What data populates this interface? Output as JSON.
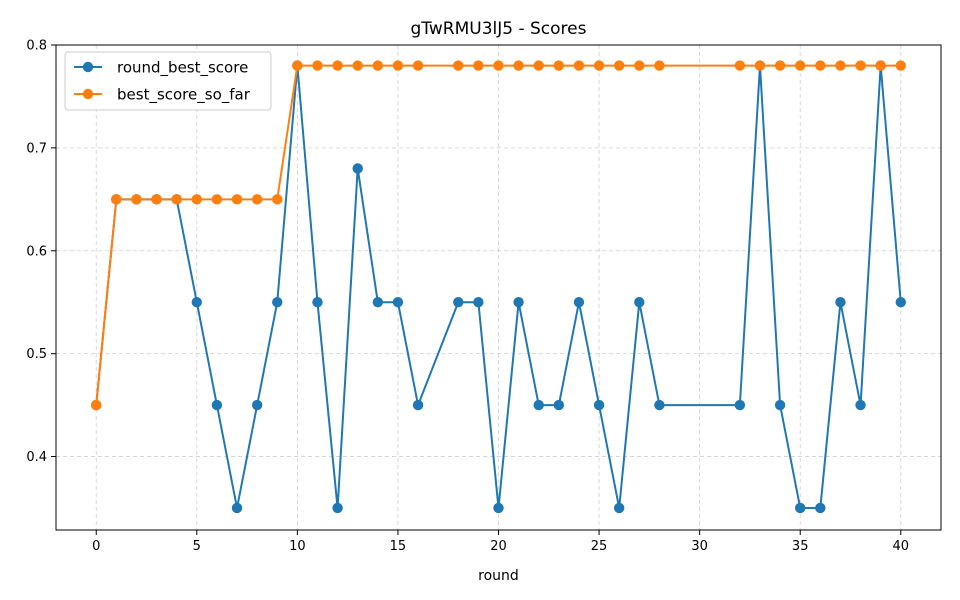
{
  "chart_data": {
    "type": "line",
    "title": "gTwRMU3lJ5 - Scores",
    "xlabel": "round",
    "ylabel": "",
    "xlim": [
      -2,
      42
    ],
    "ylim": [
      0.3286,
      0.8
    ],
    "xticks": [
      0,
      5,
      10,
      15,
      20,
      25,
      30,
      35,
      40
    ],
    "yticks": [
      0.4,
      0.5,
      0.6,
      0.7,
      0.8
    ],
    "xtick_labels": [
      "0",
      "5",
      "10",
      "15",
      "20",
      "25",
      "30",
      "35",
      "40"
    ],
    "ytick_labels": [
      "0.4",
      "0.5",
      "0.6",
      "0.7",
      "0.8"
    ],
    "grid": true,
    "legend_position": "top-left",
    "series": [
      {
        "name": "round_best_score",
        "color": "#1f77b4",
        "x": [
          0,
          1,
          2,
          3,
          4,
          5,
          6,
          7,
          8,
          9,
          10,
          11,
          12,
          13,
          14,
          15,
          16,
          18,
          19,
          20,
          21,
          22,
          23,
          24,
          25,
          26,
          27,
          28,
          32,
          33,
          34,
          35,
          36,
          37,
          38,
          39,
          40
        ],
        "y": [
          0.45,
          0.65,
          0.65,
          0.65,
          0.65,
          0.55,
          0.45,
          0.35,
          0.45,
          0.55,
          0.78,
          0.55,
          0.35,
          0.68,
          0.55,
          0.55,
          0.45,
          0.55,
          0.55,
          0.35,
          0.55,
          0.45,
          0.45,
          0.55,
          0.45,
          0.35,
          0.55,
          0.45,
          0.45,
          0.78,
          0.45,
          0.35,
          0.35,
          0.55,
          0.45,
          0.78,
          0.55
        ]
      },
      {
        "name": "best_score_so_far",
        "color": "#ff7f0e",
        "x": [
          0,
          1,
          2,
          3,
          4,
          5,
          6,
          7,
          8,
          9,
          10,
          11,
          12,
          13,
          14,
          15,
          16,
          18,
          19,
          20,
          21,
          22,
          23,
          24,
          25,
          26,
          27,
          28,
          32,
          33,
          34,
          35,
          36,
          37,
          38,
          39,
          40
        ],
        "y": [
          0.45,
          0.65,
          0.65,
          0.65,
          0.65,
          0.65,
          0.65,
          0.65,
          0.65,
          0.65,
          0.78,
          0.78,
          0.78,
          0.78,
          0.78,
          0.78,
          0.78,
          0.78,
          0.78,
          0.78,
          0.78,
          0.78,
          0.78,
          0.78,
          0.78,
          0.78,
          0.78,
          0.78,
          0.78,
          0.78,
          0.78,
          0.78,
          0.78,
          0.78,
          0.78,
          0.78,
          0.78
        ]
      }
    ]
  }
}
